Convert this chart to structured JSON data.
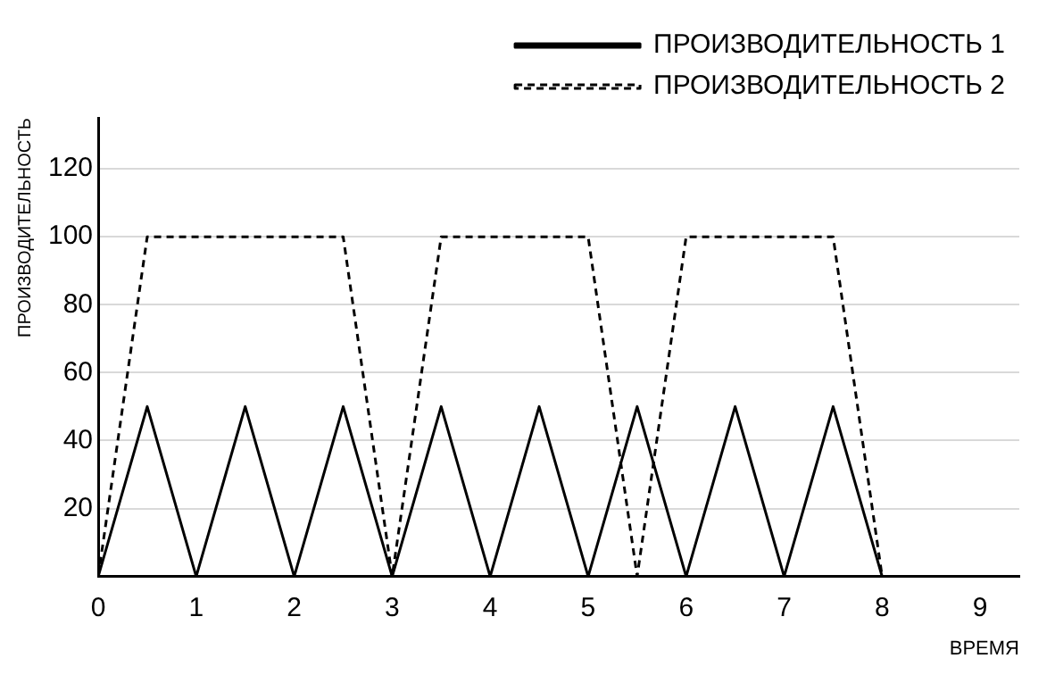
{
  "chart_data": {
    "type": "line",
    "xlabel": "ВРЕМЯ",
    "ylabel": "ПРОИЗВОДИТЕЛЬНОСТЬ",
    "series": [
      {
        "name": "ПРОИЗВОДИТЕЛЬНОСТЬ 1",
        "color": "#000000",
        "line_style": "solid",
        "x": [
          0,
          0.5,
          1,
          1.5,
          2,
          2.5,
          3,
          3.5,
          4,
          4.5,
          5,
          5.5,
          6,
          6.5,
          7,
          7.5,
          8
        ],
        "values": [
          0,
          50,
          0,
          50,
          0,
          50,
          0,
          50,
          0,
          50,
          0,
          50,
          0,
          50,
          0,
          50,
          0
        ]
      },
      {
        "name": "ПРОИЗВОДИТЕЛЬНОСТЬ 2",
        "color": "#000000",
        "line_style": "dashed",
        "x": [
          0,
          0.5,
          2.5,
          3,
          3.5,
          5,
          5.5,
          6,
          7.5,
          8
        ],
        "values": [
          0,
          100,
          100,
          0,
          100,
          100,
          0,
          100,
          100,
          0
        ]
      }
    ],
    "xlim": [
      0,
      9.4
    ],
    "xticks": [
      0,
      1,
      2,
      3,
      4,
      5,
      6,
      7,
      8,
      9
    ],
    "ylim": [
      0,
      135
    ],
    "yticks": [
      20,
      40,
      60,
      80,
      100,
      120
    ],
    "grid": "y",
    "legend": "top right",
    "marker": "none"
  }
}
